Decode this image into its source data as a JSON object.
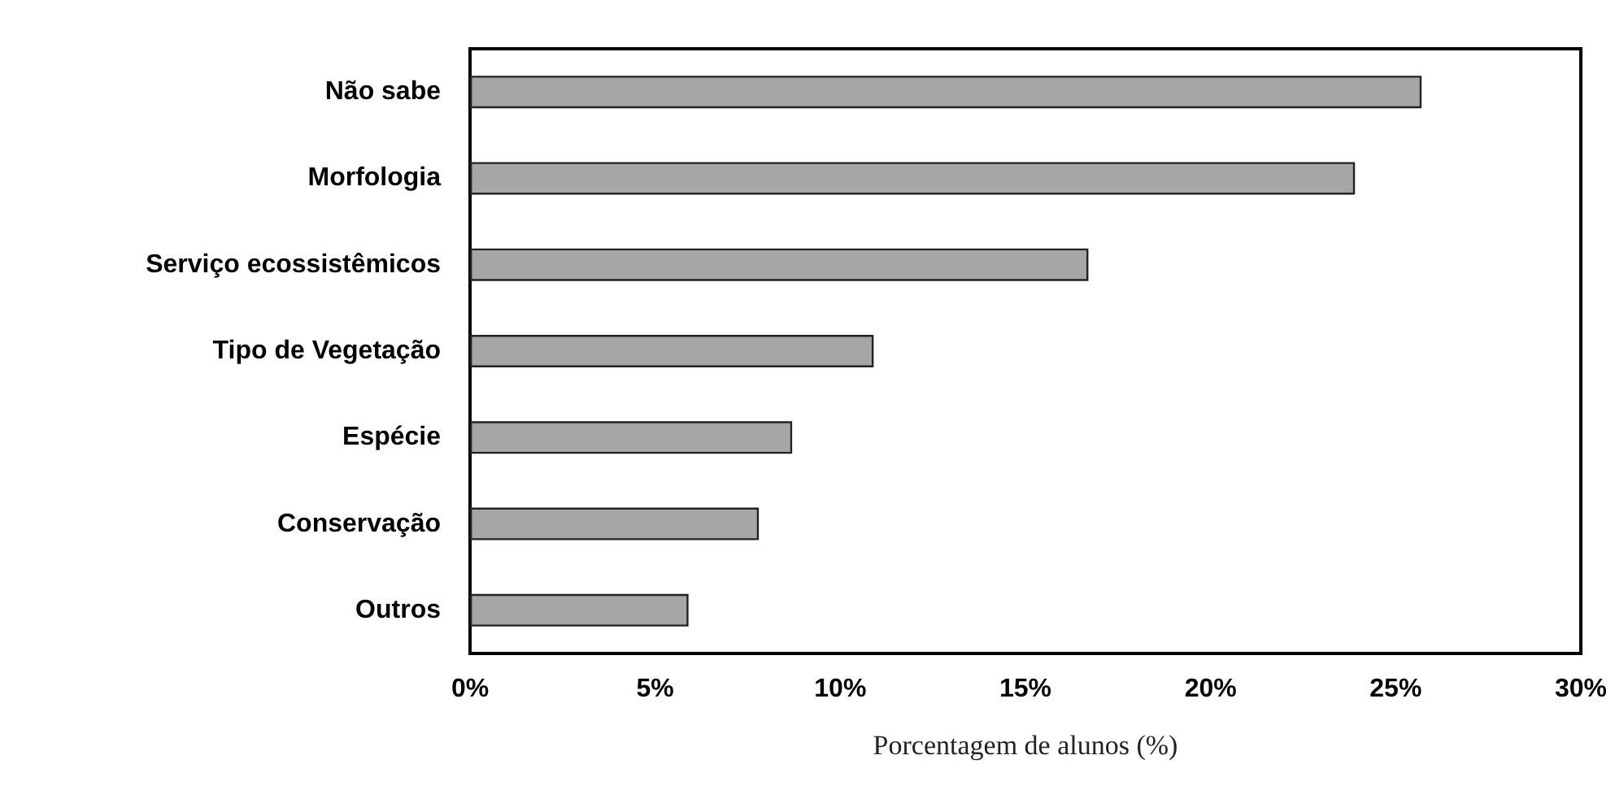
{
  "chart_data": {
    "type": "bar",
    "orientation": "horizontal",
    "categories": [
      "Não sabe",
      "Morfologia",
      "Serviço ecossistêmicos",
      "Tipo de Vegetação",
      "Espécie",
      "Conservação",
      "Outros"
    ],
    "values": [
      25.7,
      23.9,
      16.7,
      10.9,
      8.7,
      7.8,
      5.9
    ],
    "color": "#a6a6a6",
    "xlim": [
      0,
      30
    ],
    "xticks": [
      {
        "value": 0,
        "label": "0%"
      },
      {
        "value": 5,
        "label": "5%"
      },
      {
        "value": 10,
        "label": "10%"
      },
      {
        "value": 15,
        "label": "15%"
      },
      {
        "value": 20,
        "label": "20%"
      },
      {
        "value": 25,
        "label": "25%"
      },
      {
        "value": 30,
        "label": "30%"
      }
    ],
    "xlabel": "Porcentagem de alunos (%)",
    "grid": false
  }
}
